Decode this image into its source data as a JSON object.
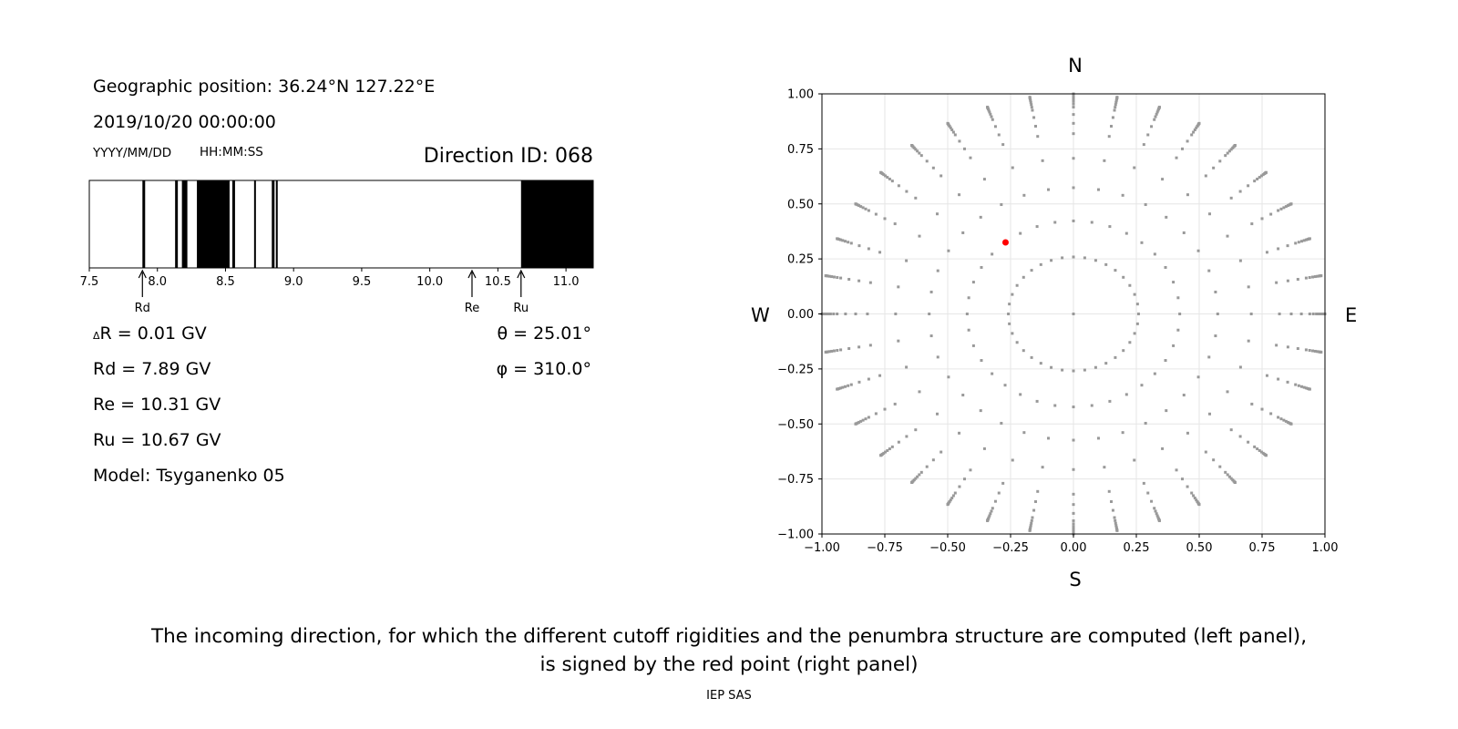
{
  "header": {
    "position": "Geographic position: 36.24°N 127.22°E",
    "datetime": "2019/10/20 00:00:00",
    "date_format": "YYYY/MM/DD",
    "time_format": "HH:MM:SS",
    "direction_id": "Direction ID: 068"
  },
  "stats": {
    "delta_r": "R = 0.01 GV",
    "delta_symbol": "Δ",
    "rd": "Rd = 7.89 GV",
    "re": "Re = 10.31 GV",
    "ru": "Ru = 10.67 GV",
    "model": "Model: Tsyganenko 05",
    "theta": "θ = 25.01°",
    "phi": "φ = 310.0°"
  },
  "compass": {
    "north": "N",
    "south": "S",
    "west": "W",
    "east": "E"
  },
  "caption": {
    "line1": "The incoming direction, for which the different cutoff rigidities and the penumbra structure are computed (left panel),",
    "line2": "is signed by the red point (right panel)",
    "credit": "IEP SAS"
  },
  "colors": {
    "accent_point": "#ff0000",
    "grid_point": "#999999",
    "band": "#000000"
  },
  "chart_data": [
    {
      "type": "penumbra",
      "xlim": [
        7.5,
        11.2
      ],
      "ticks": [
        7.5,
        8.0,
        8.5,
        9.0,
        9.5,
        10.0,
        10.5,
        11.0
      ],
      "tick_labels": [
        "7.5",
        "8.0",
        "8.5",
        "9.0",
        "9.5",
        "10.0",
        "10.5",
        "11.0"
      ],
      "forbidden_bands": [
        [
          7.89,
          7.91
        ],
        [
          8.13,
          8.15
        ],
        [
          8.18,
          8.22
        ],
        [
          8.29,
          8.53
        ],
        [
          8.55,
          8.57
        ],
        [
          8.71,
          8.72
        ],
        [
          8.84,
          8.86
        ],
        [
          8.87,
          8.88
        ],
        [
          10.67,
          11.2
        ]
      ],
      "markers": [
        {
          "label": "Rd",
          "value": 7.89
        },
        {
          "label": "Re",
          "value": 10.31
        },
        {
          "label": "Ru",
          "value": 10.67
        }
      ]
    },
    {
      "type": "scatter",
      "xlim": [
        -1,
        1
      ],
      "ylim": [
        -1,
        1
      ],
      "ticks": [
        -1.0,
        -0.75,
        -0.5,
        -0.25,
        0.0,
        0.25,
        0.5,
        0.75,
        1.0
      ],
      "x_tick_labels": [
        "−1.00",
        "−0.75",
        "−0.50",
        "−0.25",
        "0.00",
        "0.25",
        "0.50",
        "0.75",
        "1.00"
      ],
      "y_tick_labels": [
        "−1.00",
        "−0.75",
        "−0.50",
        "−0.25",
        "0.00",
        "0.25",
        "0.50",
        "0.75",
        "1.00"
      ],
      "grid": true,
      "grid_rings_theta_deg": [
        0,
        15,
        25,
        35,
        45,
        55,
        60,
        65,
        70,
        72.5,
        75,
        77.5,
        80,
        82.5,
        85,
        87.5,
        90
      ],
      "azimuth_step_deg": 10,
      "highlight": {
        "theta_deg": 25.01,
        "phi_deg": 310.0,
        "x": -0.27,
        "y": 0.325
      }
    }
  ]
}
